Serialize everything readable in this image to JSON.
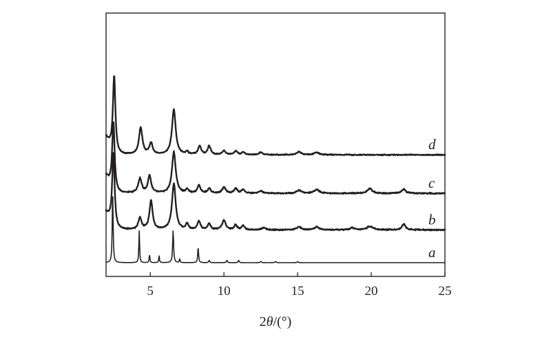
{
  "chart_data": {
    "type": "line",
    "xlabel_prefix": "2",
    "xlabel_symbol": "θ",
    "xlabel_suffix": "/(°)",
    "ylabel": "",
    "xlim": [
      2,
      25
    ],
    "ylim": [
      0,
      10
    ],
    "grid": false,
    "x_ticks": [
      5,
      10,
      15,
      20,
      25
    ],
    "x_tick_labels": [
      "5",
      "10",
      "15",
      "20",
      "25"
    ],
    "series": [
      {
        "name": "a",
        "baseline": 0.0,
        "noise": 0.0,
        "peaks": [
          [
            2.45,
            3.7,
            0.035
          ],
          [
            4.25,
            1.65,
            0.03
          ],
          [
            4.95,
            0.42,
            0.03
          ],
          [
            5.6,
            0.35,
            0.03
          ],
          [
            6.55,
            1.65,
            0.04
          ],
          [
            7.0,
            0.2,
            0.03
          ],
          [
            8.25,
            0.8,
            0.035
          ],
          [
            9.0,
            0.12,
            0.04
          ],
          [
            10.2,
            0.12,
            0.04
          ],
          [
            11.0,
            0.12,
            0.04
          ],
          [
            12.5,
            0.06,
            0.05
          ],
          [
            13.5,
            0.06,
            0.05
          ],
          [
            15.0,
            0.05,
            0.05
          ]
        ]
      },
      {
        "name": "b",
        "baseline": 1.7,
        "noise": 0.05,
        "peaks": [
          [
            2.5,
            3.9,
            0.1
          ],
          [
            4.3,
            0.6,
            0.13
          ],
          [
            5.05,
            1.5,
            0.13
          ],
          [
            6.6,
            2.4,
            0.15
          ],
          [
            7.5,
            0.3,
            0.1
          ],
          [
            8.3,
            0.45,
            0.12
          ],
          [
            9.0,
            0.3,
            0.12
          ],
          [
            10.0,
            0.5,
            0.14
          ],
          [
            10.8,
            0.25,
            0.12
          ],
          [
            11.3,
            0.2,
            0.12
          ],
          [
            12.7,
            0.12,
            0.15
          ],
          [
            15.1,
            0.15,
            0.2
          ],
          [
            16.3,
            0.15,
            0.2
          ],
          [
            18.7,
            0.1,
            0.2
          ],
          [
            19.9,
            0.18,
            0.25
          ],
          [
            22.2,
            0.3,
            0.15
          ]
        ]
      },
      {
        "name": "c",
        "baseline": 3.6,
        "noise": 0.05,
        "peaks": [
          [
            2.5,
            3.6,
            0.1
          ],
          [
            4.3,
            0.75,
            0.14
          ],
          [
            4.95,
            0.9,
            0.13
          ],
          [
            6.6,
            2.15,
            0.15
          ],
          [
            7.5,
            0.2,
            0.1
          ],
          [
            8.3,
            0.42,
            0.12
          ],
          [
            9.0,
            0.25,
            0.12
          ],
          [
            10.0,
            0.3,
            0.14
          ],
          [
            10.8,
            0.25,
            0.12
          ],
          [
            11.3,
            0.2,
            0.12
          ],
          [
            12.5,
            0.12,
            0.15
          ],
          [
            15.1,
            0.15,
            0.2
          ],
          [
            16.3,
            0.2,
            0.2
          ],
          [
            19.9,
            0.25,
            0.2
          ],
          [
            22.2,
            0.22,
            0.15
          ]
        ]
      },
      {
        "name": "d",
        "baseline": 5.6,
        "noise": 0.04,
        "peaks": [
          [
            2.55,
            4.05,
            0.1
          ],
          [
            4.35,
            1.4,
            0.14
          ],
          [
            5.05,
            0.6,
            0.13
          ],
          [
            6.6,
            2.35,
            0.15
          ],
          [
            7.5,
            0.15,
            0.1
          ],
          [
            8.35,
            0.45,
            0.12
          ],
          [
            9.0,
            0.45,
            0.12
          ],
          [
            10.0,
            0.2,
            0.14
          ],
          [
            10.8,
            0.2,
            0.12
          ],
          [
            11.3,
            0.15,
            0.12
          ],
          [
            12.5,
            0.12,
            0.15
          ],
          [
            15.1,
            0.15,
            0.2
          ],
          [
            16.3,
            0.12,
            0.2
          ]
        ]
      }
    ]
  }
}
